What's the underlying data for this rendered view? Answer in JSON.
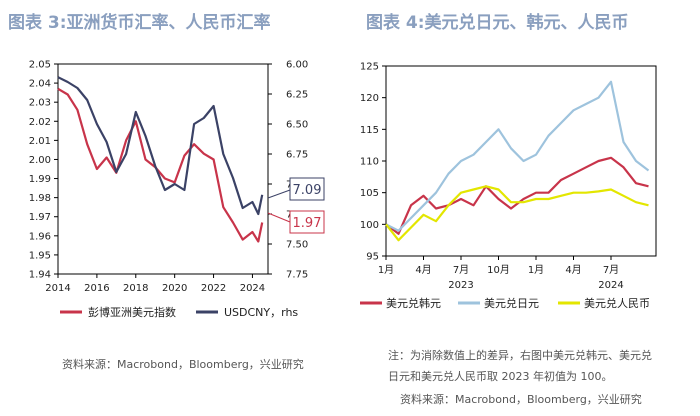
{
  "left_title": "图表 3:亚洲货币汇率、人民币汇率",
  "right_title": "图表 4:美元兑日元、韩元、人民币",
  "left_source": "资料来源：Macrobond，Bloomberg，兴业研究",
  "right_note_line1": "注：为消除数值上的差异，右图中美元兑韩元、美元兑",
  "right_note_line2": "日元和美元兑人民币取 2023 年初值为 100。",
  "right_source": "资料来源：Macrobond，Bloomberg，兴业研究",
  "colors": {
    "red": "#c8344a",
    "navy": "#3b4266",
    "lightblue": "#9ec3dd",
    "yellow": "#e3e600",
    "title": "#8a9fbf"
  },
  "chart_data": [
    {
      "type": "line",
      "title": "亚洲货币汇率、人民币汇率",
      "x": [
        2014.0,
        2014.5,
        2015.0,
        2015.5,
        2016.0,
        2016.5,
        2017.0,
        2017.5,
        2018.0,
        2018.5,
        2019.0,
        2019.5,
        2020.0,
        2020.5,
        2021.0,
        2021.5,
        2022.0,
        2022.5,
        2023.0,
        2023.5,
        2024.0,
        2024.3,
        2024.5
      ],
      "x_ticks": [
        "2014",
        "2016",
        "2018",
        "2020",
        "2022",
        "2024"
      ],
      "ylim": [
        1.94,
        2.05
      ],
      "y_ticks": [
        "1.94",
        "1.95",
        "1.96",
        "1.97",
        "1.98",
        "1.99",
        "2.00",
        "2.01",
        "2.02",
        "2.03",
        "2.04",
        "2.05"
      ],
      "y2lim": [
        7.75,
        6.0
      ],
      "y2_ticks": [
        "6.00",
        "6.25",
        "6.50",
        "6.75",
        "7.00",
        "7.25",
        "7.50",
        "7.75"
      ],
      "series": [
        {
          "name": "彭博亚洲美元指数",
          "axis": "left",
          "color": "red",
          "values": [
            2.037,
            2.034,
            2.026,
            2.008,
            1.995,
            2.001,
            1.993,
            2.01,
            2.02,
            2.0,
            1.996,
            1.99,
            1.988,
            2.002,
            2.008,
            2.003,
            2.0,
            1.975,
            1.967,
            1.958,
            1.962,
            1.957,
            1.967
          ]
        },
        {
          "name": "USDCNY，rhs",
          "axis": "right",
          "color": "navy",
          "values": [
            6.11,
            6.15,
            6.2,
            6.3,
            6.5,
            6.65,
            6.9,
            6.75,
            6.4,
            6.6,
            6.85,
            7.05,
            7.0,
            7.05,
            6.5,
            6.45,
            6.35,
            6.75,
            6.95,
            7.2,
            7.15,
            7.25,
            7.09
          ]
        }
      ],
      "end_labels": [
        {
          "text": "7.09",
          "series": "USDCNY，rhs"
        },
        {
          "text": "1.97",
          "series": "彭博亚洲美元指数"
        }
      ]
    },
    {
      "type": "line",
      "title": "美元兑日元、韩元、人民币",
      "x": [
        0,
        1,
        2,
        3,
        4,
        5,
        6,
        7,
        8,
        9,
        10,
        11,
        12,
        13,
        14,
        15,
        16,
        17,
        18,
        19,
        20,
        21
      ],
      "x_ticks": [
        "1月",
        "4月",
        "7月",
        "10月",
        "1月",
        "4月",
        "7月"
      ],
      "x_tick_pos": [
        0,
        3,
        6,
        9,
        12,
        15,
        18
      ],
      "x_year_labels": [
        {
          "text": "2023",
          "pos": 6
        },
        {
          "text": "2024",
          "pos": 18
        }
      ],
      "ylim": [
        95,
        125
      ],
      "y_ticks": [
        "95",
        "100",
        "105",
        "110",
        "115",
        "120",
        "125"
      ],
      "series": [
        {
          "name": "美元兑韩元",
          "color": "red",
          "values": [
            100,
            98.5,
            103,
            104.5,
            102.5,
            103,
            104,
            103,
            106,
            104,
            102.5,
            104,
            105,
            105,
            107,
            108,
            109,
            110,
            110.5,
            109,
            106.5,
            106
          ]
        },
        {
          "name": "美元兑日元",
          "color": "lightblue",
          "values": [
            100,
            99,
            101,
            103,
            105,
            108,
            110,
            111,
            113,
            115,
            112,
            110,
            111,
            114,
            116,
            118,
            119,
            120,
            122.5,
            113,
            110,
            108.5
          ]
        },
        {
          "name": "美元兑人民币",
          "color": "yellow",
          "values": [
            100,
            97.5,
            99.5,
            101.5,
            100.5,
            103,
            105,
            105.5,
            106,
            105.5,
            103.5,
            103.5,
            104,
            104,
            104.5,
            105,
            105,
            105.2,
            105.5,
            104.5,
            103.5,
            103
          ]
        }
      ]
    }
  ]
}
